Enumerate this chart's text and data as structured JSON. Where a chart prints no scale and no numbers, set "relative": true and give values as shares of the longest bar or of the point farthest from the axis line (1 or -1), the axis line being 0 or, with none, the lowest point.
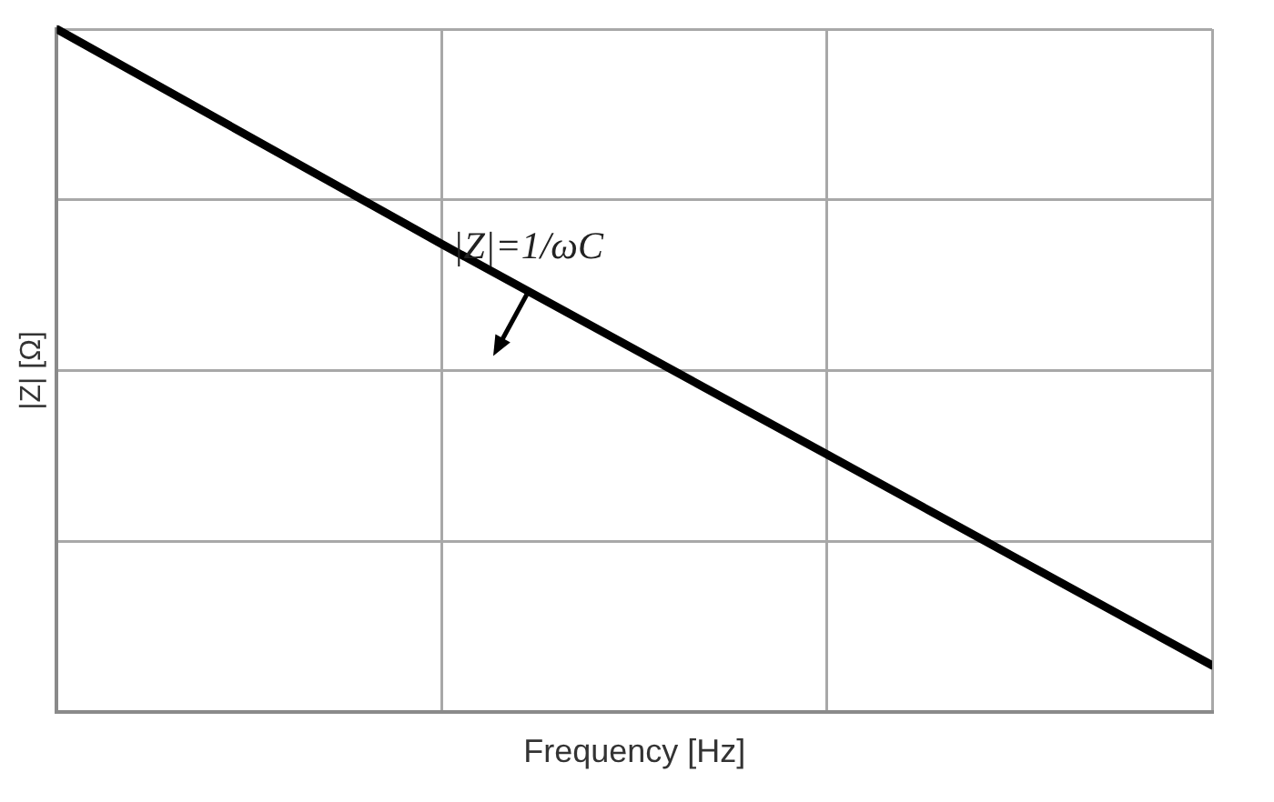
{
  "chart_data": {
    "type": "line",
    "relative": true,
    "categories": [
      null,
      null,
      null,
      null
    ],
    "series": [
      {
        "color": "#000000",
        "values": [
          1,
          0.685,
          0.377,
          0.068
        ]
      }
    ],
    "xlabel": "Frequency [Hz]",
    "ylabel": "|Z| [Ω]",
    "annotations": [
      "|Z|=1/ωC"
    ],
    "grid": true,
    "legend": false,
    "marker": "none",
    "line_style": "solid"
  }
}
